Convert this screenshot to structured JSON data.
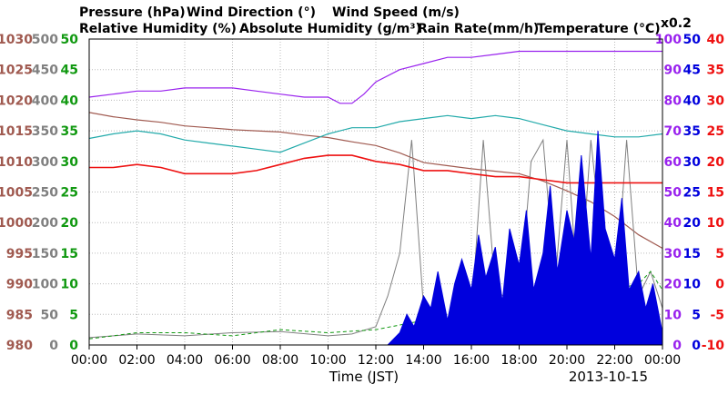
{
  "chart_data": {
    "type": "line",
    "date_label": "2013-10-15",
    "xlabel": "Time (JST)",
    "x_ticks": [
      "00:00",
      "02:00",
      "04:00",
      "06:00",
      "08:00",
      "10:00",
      "12:00",
      "14:00",
      "16:00",
      "18:00",
      "20:00",
      "22:00",
      "00:00"
    ],
    "grid": true,
    "legend_placement": "top",
    "scale_note": "x0.2",
    "axes": {
      "pressure": {
        "label": "Pressure (hPa)",
        "color": "#a05a50",
        "range": [
          980,
          1030
        ],
        "ticks": [
          "980",
          "985",
          "990",
          "995",
          "1000",
          "1005",
          "1010",
          "1015",
          "1020",
          "1025",
          "1030"
        ]
      },
      "wind_direction": {
        "label": "Wind Direction (°)",
        "color": "#808080",
        "range": [
          0,
          500
        ],
        "ticks": [
          "0",
          "50",
          "100",
          "150",
          "200",
          "250",
          "300",
          "350",
          "400",
          "450",
          "500"
        ]
      },
      "wind_speed": {
        "label": "Wind Speed (m/s)",
        "color": "#119911",
        "range": [
          0,
          50
        ],
        "ticks": [
          "0",
          "5",
          "10",
          "15",
          "20",
          "25",
          "30",
          "35",
          "40",
          "45",
          "50"
        ]
      },
      "relative_humidity": {
        "label": "Relative Humidity (%)",
        "color": "#9922ee",
        "range": [
          0,
          100
        ],
        "ticks": [
          "0",
          "10",
          "20",
          "30",
          "40",
          "50",
          "60",
          "70",
          "80",
          "90",
          "100"
        ]
      },
      "absolute_humidity": {
        "label": "Absolute Humidity (g/m³)",
        "color": "#22aaaa"
      },
      "rain_rate": {
        "label": "Rain Rate(mm/h)",
        "color": "#0000dd",
        "range": [
          0,
          50
        ],
        "ticks": [
          "0",
          "5",
          "10",
          "15",
          "20",
          "25",
          "30",
          "35",
          "40",
          "45",
          "50"
        ]
      },
      "temperature": {
        "label": "Temperature (°C)",
        "color": "#ee1111",
        "range": [
          -10,
          40
        ],
        "ticks": [
          "-10",
          "-5",
          "0",
          "5",
          "10",
          "15",
          "20",
          "25",
          "30",
          "35",
          "40"
        ]
      }
    },
    "series": [
      {
        "key": "pressure",
        "axis": "pressure",
        "x": [
          0,
          1,
          2,
          3,
          4,
          5,
          6,
          7,
          8,
          9,
          10,
          11,
          12,
          13,
          14,
          15,
          16,
          17,
          18,
          19,
          20,
          21,
          22,
          23,
          24
        ],
        "y": [
          1018,
          1017.3,
          1016.8,
          1016.4,
          1015.8,
          1015.5,
          1015.2,
          1015.0,
          1014.8,
          1014.3,
          1013.9,
          1013.2,
          1012.6,
          1011.4,
          1009.8,
          1009.3,
          1008.8,
          1008.4,
          1008.0,
          1006.8,
          1005.2,
          1003.4,
          1001.0,
          998.0,
          995.8
        ]
      },
      {
        "key": "wind_direction",
        "axis": "wind_direction",
        "x": [
          0,
          2,
          4,
          6,
          8,
          10,
          11,
          12,
          12.5,
          13,
          13.5,
          14,
          15,
          16,
          16.5,
          17,
          18,
          18.5,
          19,
          19.5,
          20,
          20.5,
          21,
          21.5,
          22,
          22.5,
          23,
          23.5,
          24
        ],
        "y": [
          12,
          18,
          15,
          20,
          22,
          15,
          18,
          30,
          80,
          150,
          335,
          60,
          40,
          45,
          335,
          90,
          60,
          300,
          335,
          100,
          335,
          60,
          335,
          150,
          60,
          335,
          80,
          120,
          60
        ]
      },
      {
        "key": "wind_speed",
        "axis": "wind_speed",
        "x": [
          0,
          2,
          4,
          6,
          8,
          10,
          12,
          14,
          15,
          16,
          17,
          18,
          19,
          20,
          21,
          22,
          23,
          23.5,
          24
        ],
        "y": [
          1,
          2,
          2,
          1.5,
          2.5,
          2,
          2.5,
          4,
          5,
          6,
          4.5,
          5,
          6,
          7,
          8,
          9,
          10,
          12,
          9
        ]
      },
      {
        "key": "relative_humidity",
        "axis": "relative_humidity",
        "x": [
          0,
          1,
          2,
          3,
          4,
          5,
          6,
          7,
          8,
          9,
          10,
          10.5,
          11,
          11.5,
          12,
          13,
          14,
          15,
          16,
          17,
          18,
          19,
          20,
          21,
          22,
          23,
          23.5,
          24
        ],
        "y": [
          81,
          82,
          83,
          83,
          84,
          84,
          84,
          83,
          82,
          81,
          81,
          79,
          79,
          82,
          86,
          90,
          92,
          94,
          94,
          95,
          96,
          96,
          96,
          96,
          96,
          96,
          96,
          96
        ]
      },
      {
        "key": "absolute_humidity",
        "axis": "relative_humidity",
        "x": [
          0,
          1,
          2,
          3,
          4,
          5,
          6,
          7,
          8,
          9,
          10,
          11,
          12,
          13,
          14,
          15,
          16,
          17,
          18,
          19,
          20,
          21,
          22,
          23,
          24
        ],
        "y": [
          67.5,
          69,
          70,
          69,
          67,
          66,
          65,
          64,
          63,
          66,
          69,
          71,
          71,
          73,
          74,
          75,
          74,
          75,
          74,
          72,
          70,
          69,
          68,
          68,
          69
        ]
      },
      {
        "key": "temperature",
        "axis": "temperature",
        "x": [
          0,
          1,
          2,
          3,
          4,
          5,
          6,
          7,
          8,
          9,
          10,
          11,
          12,
          13,
          14,
          15,
          16,
          17,
          18,
          19,
          20,
          21,
          22,
          23,
          24
        ],
        "y": [
          19,
          19,
          19.5,
          19,
          18,
          18,
          18,
          18.5,
          19.5,
          20.5,
          21,
          21,
          20,
          19.5,
          18.5,
          18.5,
          18,
          17.5,
          17.5,
          17,
          16.5,
          16.5,
          16.5,
          16.5,
          16.5
        ]
      },
      {
        "key": "rain_rate",
        "axis": "rain_rate",
        "x": [
          12.5,
          13,
          13.3,
          13.6,
          14,
          14.3,
          14.6,
          15,
          15.3,
          15.6,
          16,
          16.3,
          16.6,
          17,
          17.3,
          17.6,
          18,
          18.3,
          18.6,
          19,
          19.3,
          19.6,
          20,
          20.3,
          20.6,
          21,
          21.3,
          21.6,
          22,
          22.3,
          22.6,
          23,
          23.3,
          23.6,
          24
        ],
        "y": [
          0,
          2,
          5,
          3,
          8,
          6,
          12,
          4,
          10,
          14,
          9,
          18,
          11,
          16,
          7,
          19,
          13,
          22,
          9,
          15,
          26,
          12,
          22,
          17,
          31,
          14,
          35,
          19,
          14,
          24,
          9,
          12,
          6,
          10,
          2
        ]
      }
    ]
  }
}
